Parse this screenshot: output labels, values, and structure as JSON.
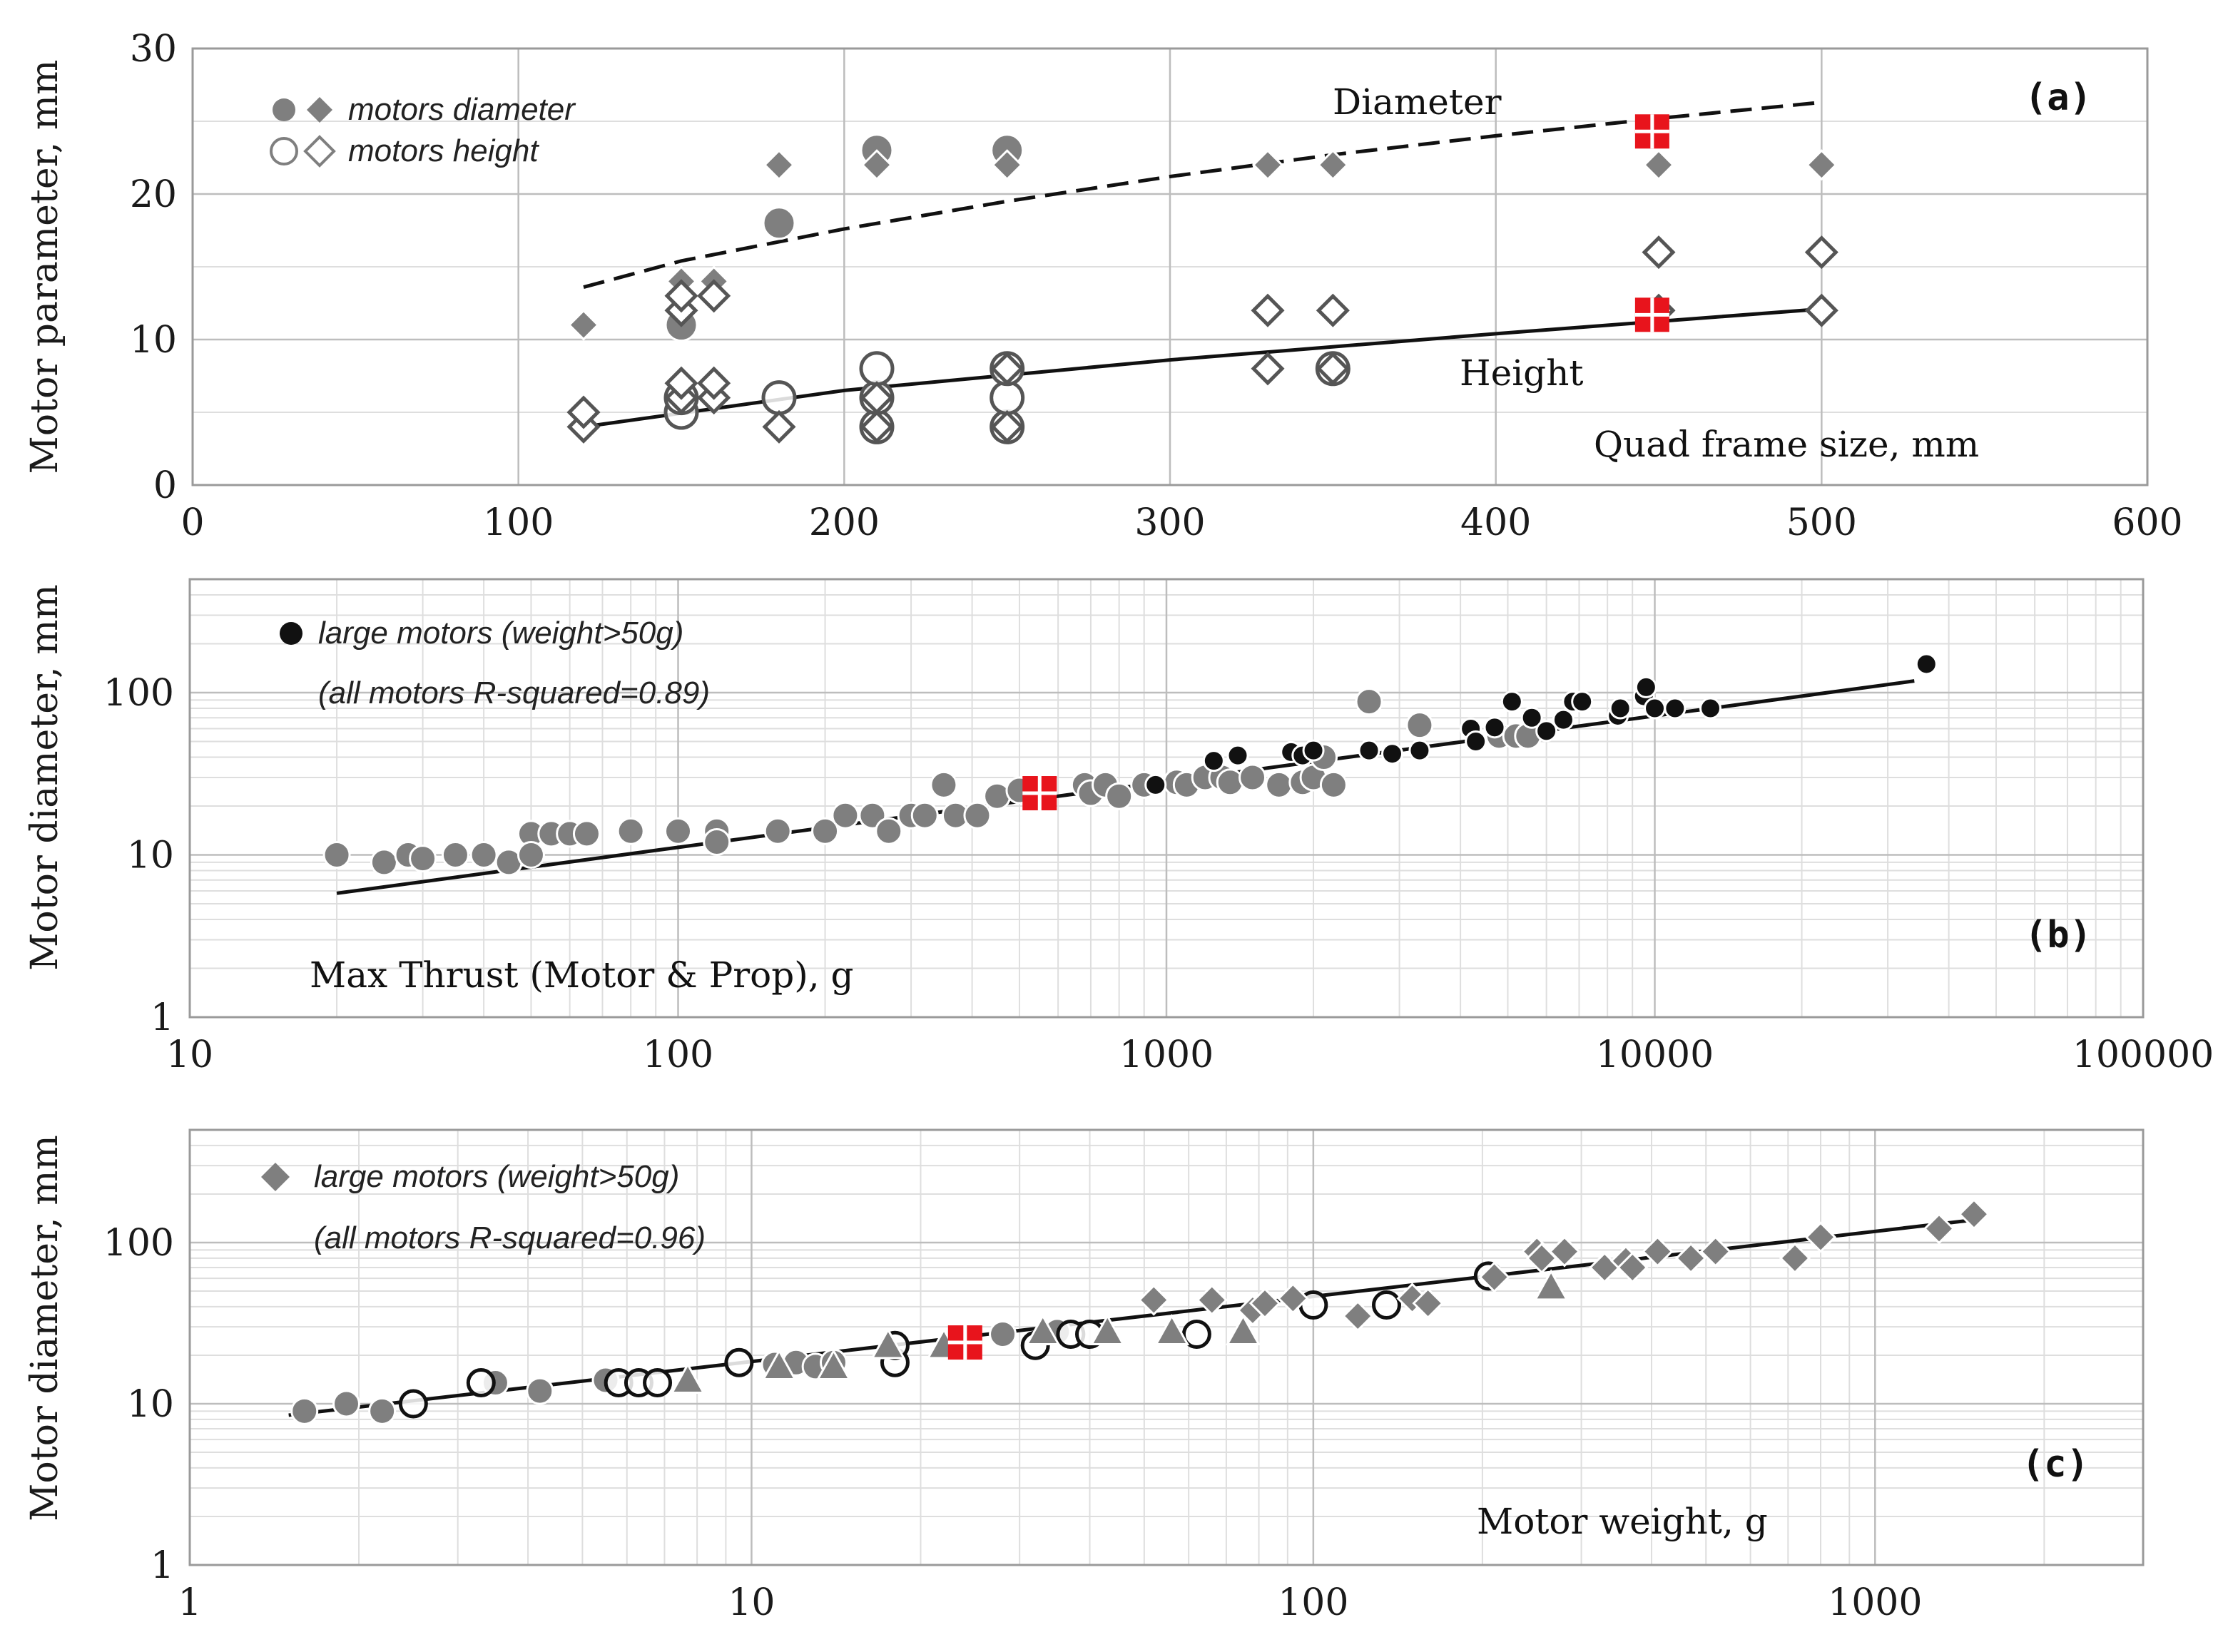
{
  "colors": {
    "gray": "#7f7f7f",
    "black": "#111111",
    "red": "#e8141c",
    "grid_major": "#bdbdbd",
    "grid_minor": "#dedede"
  },
  "chart_data": [
    {
      "id": "a",
      "type": "scatter",
      "panel_label": "(a)",
      "ylabel": "Motor parameter, mm",
      "xlabel": "Quad frame size, mm",
      "xlim": [
        0,
        600
      ],
      "ylim": [
        0,
        30
      ],
      "xticks": [
        "0",
        "100",
        "200",
        "300",
        "400",
        "500",
        "600"
      ],
      "yticks": [
        "0",
        "10",
        "20",
        "30"
      ],
      "legend": [
        "motors diameter",
        "motors height"
      ],
      "annotations": {
        "diameter": "Diameter",
        "height": "Height"
      },
      "series": [
        {
          "name": "motors diameter (circle)",
          "marker": "circle",
          "fill": "gray",
          "points": [
            [
              150,
              11
            ],
            [
              180,
              18
            ],
            [
              210,
              23
            ],
            [
              250,
              23
            ]
          ]
        },
        {
          "name": "motors diameter (diamond)",
          "marker": "diamond",
          "fill": "gray",
          "points": [
            [
              120,
              11
            ],
            [
              150,
              14
            ],
            [
              160,
              14
            ],
            [
              180,
              22
            ],
            [
              210,
              22
            ],
            [
              250,
              22
            ],
            [
              330,
              22
            ],
            [
              350,
              22
            ],
            [
              450,
              22
            ],
            [
              500,
              22
            ]
          ]
        },
        {
          "name": "motors height (circle)",
          "marker": "circle",
          "fill": "none",
          "points": [
            [
              150,
              5
            ],
            [
              150,
              6
            ],
            [
              180,
              6
            ],
            [
              210,
              4
            ],
            [
              210,
              6
            ],
            [
              210,
              8
            ],
            [
              250,
              4
            ],
            [
              250,
              6
            ],
            [
              250,
              8
            ],
            [
              350,
              8
            ]
          ]
        },
        {
          "name": "motors height (diamond)",
          "marker": "diamond",
          "fill": "none",
          "points": [
            [
              120,
              4
            ],
            [
              120,
              5
            ],
            [
              150,
              6
            ],
            [
              150,
              7
            ],
            [
              150,
              12
            ],
            [
              150,
              13
            ],
            [
              160,
              6
            ],
            [
              160,
              7
            ],
            [
              160,
              13
            ],
            [
              180,
              4
            ],
            [
              210,
              4
            ],
            [
              210,
              6
            ],
            [
              250,
              4
            ],
            [
              250,
              8
            ],
            [
              330,
              8
            ],
            [
              330,
              12
            ],
            [
              350,
              8
            ],
            [
              350,
              12
            ],
            [
              450,
              12
            ],
            [
              450,
              16
            ],
            [
              500,
              12
            ],
            [
              500,
              16
            ]
          ]
        },
        {
          "name": "highlight",
          "marker": "redsquare",
          "points": [
            [
              448,
              24.3
            ],
            [
              448,
              11.7
            ]
          ]
        }
      ],
      "trends": [
        {
          "name": "Diameter",
          "style": "dashed",
          "points": [
            [
              120,
              13.6
            ],
            [
              150,
              15.4
            ],
            [
              200,
              17.6
            ],
            [
              250,
              19.5
            ],
            [
              300,
              21.2
            ],
            [
              350,
              22.7
            ],
            [
              400,
              24.0
            ],
            [
              450,
              25.2
            ],
            [
              500,
              26.3
            ]
          ]
        },
        {
          "name": "Height",
          "style": "solid",
          "points": [
            [
              120,
              4.0
            ],
            [
              200,
              6.5
            ],
            [
              300,
              8.6
            ],
            [
              400,
              10.4
            ],
            [
              500,
              12.1
            ]
          ]
        }
      ]
    },
    {
      "id": "b",
      "type": "scatter",
      "panel_label": "(b)",
      "ylabel": "Motor diameter, mm",
      "xlabel": "Max Thrust (Motor & Prop), g",
      "xscale": "log",
      "yscale": "log",
      "xlim": [
        10,
        100000
      ],
      "ylim": [
        1,
        500
      ],
      "xticks": [
        "10",
        "100",
        "1000",
        "10000",
        "100000"
      ],
      "yticks": [
        "1",
        "10",
        "100"
      ],
      "legend": [
        "large motors (weight>50g)"
      ],
      "annotation": "(all motors R-squared=0.89)",
      "series": [
        {
          "name": "small motors",
          "marker": "circle",
          "fill": "gray",
          "points": [
            [
              20,
              10
            ],
            [
              25,
              9
            ],
            [
              28,
              10
            ],
            [
              30,
              9.5
            ],
            [
              35,
              10
            ],
            [
              40,
              10
            ],
            [
              45,
              9
            ],
            [
              50,
              13.5
            ],
            [
              50,
              10
            ],
            [
              55,
              13.5
            ],
            [
              60,
              13.5
            ],
            [
              65,
              13.5
            ],
            [
              80,
              14
            ],
            [
              100,
              14
            ],
            [
              120,
              14
            ],
            [
              120,
              12
            ],
            [
              160,
              14
            ],
            [
              200,
              14
            ],
            [
              220,
              17.5
            ],
            [
              250,
              17.5
            ],
            [
              270,
              14
            ],
            [
              300,
              17.5
            ],
            [
              320,
              17.5
            ],
            [
              350,
              27
            ],
            [
              370,
              17.5
            ],
            [
              410,
              17.5
            ],
            [
              450,
              23
            ],
            [
              500,
              25
            ],
            [
              680,
              27
            ],
            [
              700,
              24
            ],
            [
              750,
              27
            ],
            [
              800,
              23
            ],
            [
              900,
              27
            ],
            [
              1050,
              28
            ],
            [
              1100,
              27
            ],
            [
              1200,
              30
            ],
            [
              1300,
              30
            ],
            [
              1350,
              28
            ],
            [
              1500,
              30
            ],
            [
              1700,
              27
            ],
            [
              1900,
              28
            ],
            [
              2000,
              30
            ],
            [
              2100,
              40
            ],
            [
              2200,
              27
            ],
            [
              2600,
              88
            ],
            [
              3300,
              63
            ],
            [
              4800,
              54
            ],
            [
              5200,
              54
            ],
            [
              5500,
              54
            ]
          ]
        },
        {
          "name": "large motors (weight>50g)",
          "marker": "circle",
          "fill": "black",
          "points": [
            [
              950,
              27
            ],
            [
              1250,
              38
            ],
            [
              1400,
              41
            ],
            [
              1800,
              43
            ],
            [
              1900,
              41
            ],
            [
              2000,
              44
            ],
            [
              2600,
              44
            ],
            [
              2900,
              42
            ],
            [
              3300,
              44
            ],
            [
              4200,
              60
            ],
            [
              4300,
              50
            ],
            [
              4700,
              61
            ],
            [
              5100,
              88
            ],
            [
              5600,
              70
            ],
            [
              6000,
              58
            ],
            [
              6500,
              68
            ],
            [
              6800,
              88
            ],
            [
              7100,
              88
            ],
            [
              8400,
              72
            ],
            [
              8500,
              80
            ],
            [
              9500,
              95
            ],
            [
              9600,
              108
            ],
            [
              10000,
              80
            ],
            [
              11000,
              80
            ],
            [
              13000,
              80
            ],
            [
              36000,
              150
            ]
          ]
        },
        {
          "name": "highlight",
          "marker": "redsquare",
          "points": [
            [
              550,
              24
            ]
          ]
        }
      ],
      "trends": [
        {
          "name": "fit",
          "style": "solid",
          "points": [
            [
              20,
              5.8
            ],
            [
              34000,
              118
            ]
          ]
        }
      ]
    },
    {
      "id": "c",
      "type": "scatter",
      "panel_label": "(c)",
      "ylabel": "Motor diameter, mm",
      "xlabel": "Motor weight, g",
      "xscale": "log",
      "yscale": "log",
      "xlim": [
        1,
        3000
      ],
      "ylim": [
        1,
        500
      ],
      "xticks": [
        "1",
        "10",
        "100",
        "1000"
      ],
      "yticks": [
        "1",
        "10",
        "100"
      ],
      "legend": [
        "large motors (weight>50g)"
      ],
      "annotation": "(all motors R-squared=0.96)",
      "series": [
        {
          "name": "gray circles",
          "marker": "circle",
          "fill": "gray",
          "points": [
            [
              1.6,
              9
            ],
            [
              1.9,
              10
            ],
            [
              2.2,
              9
            ],
            [
              3.5,
              13.5
            ],
            [
              4.2,
              12
            ],
            [
              5.5,
              14
            ],
            [
              11,
              17.5
            ],
            [
              12,
              18
            ],
            [
              13,
              17
            ],
            [
              14,
              18
            ],
            [
              28,
              27
            ],
            [
              35,
              28
            ]
          ]
        },
        {
          "name": "open circles",
          "marker": "circle",
          "fill": "none",
          "points": [
            [
              2.5,
              10
            ],
            [
              3.3,
              13.5
            ],
            [
              5.8,
              13.5
            ],
            [
              6.3,
              13.5
            ],
            [
              6.8,
              13.5
            ],
            [
              9.5,
              18
            ],
            [
              18,
              18
            ],
            [
              18,
              23
            ],
            [
              32,
              23
            ],
            [
              37,
              27
            ],
            [
              40,
              27
            ],
            [
              62,
              27
            ],
            [
              100,
              41
            ],
            [
              135,
              41
            ],
            [
              205,
              62
            ]
          ]
        },
        {
          "name": "triangles",
          "marker": "triangle",
          "fill": "gray",
          "points": [
            [
              7.7,
              14
            ],
            [
              11.2,
              17
            ],
            [
              14,
              17
            ],
            [
              17.5,
              23
            ],
            [
              22,
              23
            ],
            [
              33,
              28
            ],
            [
              43,
              28
            ],
            [
              56,
              28
            ],
            [
              75,
              28
            ],
            [
              265,
              53
            ]
          ]
        },
        {
          "name": "large motors (weight>50g)",
          "marker": "diamond",
          "fill": "gray",
          "points": [
            [
              52,
              44
            ],
            [
              66,
              44
            ],
            [
              78,
              38
            ],
            [
              82,
              42
            ],
            [
              92,
              45
            ],
            [
              120,
              35
            ],
            [
              150,
              45
            ],
            [
              160,
              42
            ],
            [
              210,
              61
            ],
            [
              250,
              88
            ],
            [
              255,
              80
            ],
            [
              280,
              88
            ],
            [
              330,
              70
            ],
            [
              360,
              77
            ],
            [
              370,
              70
            ],
            [
              410,
              88
            ],
            [
              470,
              80
            ],
            [
              520,
              88
            ],
            [
              720,
              80
            ],
            [
              800,
              108
            ],
            [
              1300,
              122
            ],
            [
              1500,
              150
            ]
          ]
        },
        {
          "name": "highlight",
          "marker": "redsquare",
          "points": [
            [
              24,
              24
            ]
          ]
        }
      ],
      "trends": [
        {
          "name": "fit",
          "style": "solid",
          "points": [
            [
              1.5,
              8.5
            ],
            [
              1550,
              140
            ]
          ]
        }
      ]
    }
  ]
}
